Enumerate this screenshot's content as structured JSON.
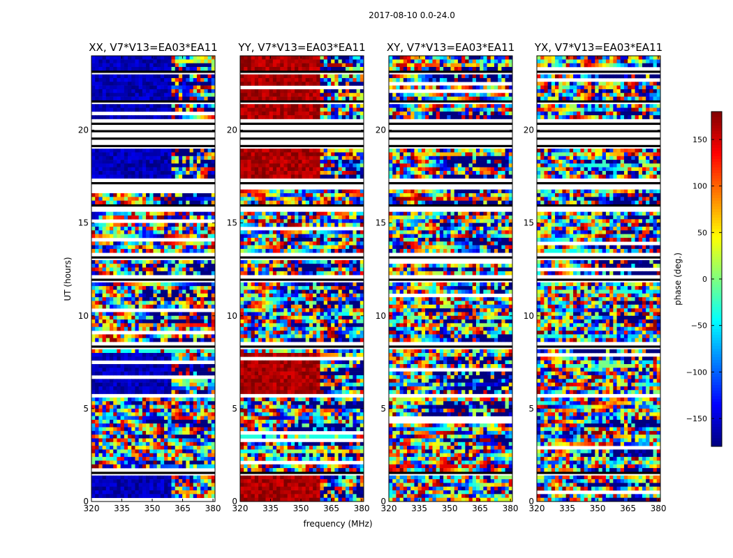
{
  "chart_data": {
    "type": "heatmap",
    "suptitle": "2017-08-10 0.0-24.0",
    "xlabel": "frequency (MHz)",
    "ylabel": "UT (hours)",
    "xlim": [
      320,
      381
    ],
    "ylim": [
      0,
      24
    ],
    "xticks": [
      "320",
      "335",
      "350",
      "365",
      "380"
    ],
    "xtick_values": [
      320,
      335,
      350,
      365,
      380
    ],
    "yticks": [
      "0",
      "5",
      "10",
      "15",
      "20"
    ],
    "ytick_values": [
      0,
      5,
      10,
      15,
      20
    ],
    "colorbar": {
      "label": "phase (deg.)",
      "range": [
        -180,
        180
      ],
      "ticks": [
        "150",
        "100",
        "50",
        "0",
        "−50",
        "−100",
        "−150"
      ],
      "tick_values": [
        150,
        100,
        50,
        0,
        -50,
        -100,
        -150
      ],
      "colormap": [
        "#00007f",
        "#0000ff",
        "#007fff",
        "#00ffff",
        "#7fff7f",
        "#ffff00",
        "#ff7f00",
        "#ff0000",
        "#7f0000"
      ]
    },
    "panels": [
      {
        "title": "XX, V7*V13=EA03*EA11",
        "pol": "XX",
        "coherent_phase": -160
      },
      {
        "title": "YY, V7*V13=EA03*EA11",
        "pol": "YY",
        "coherent_phase": 165
      },
      {
        "title": "XY, V7*V13=EA03*EA11",
        "pol": "XY",
        "coherent_phase": null
      },
      {
        "title": "YX, V7*V13=EA03*EA11",
        "pol": "YX",
        "coherent_phase": null
      }
    ],
    "flagged_ut_ranges": [
      [
        1.35,
        1.5
      ],
      [
        2.9,
        3.0
      ],
      [
        3.7,
        3.8
      ],
      [
        5.6,
        5.7
      ],
      [
        8.2,
        8.6
      ],
      [
        11.8,
        12.1
      ],
      [
        13.1,
        13.4
      ],
      [
        15.6,
        16.0
      ],
      [
        16.9,
        17.4
      ],
      [
        19.0,
        20.6
      ],
      [
        21.4,
        21.6
      ],
      [
        23.0,
        23.1
      ]
    ]
  }
}
